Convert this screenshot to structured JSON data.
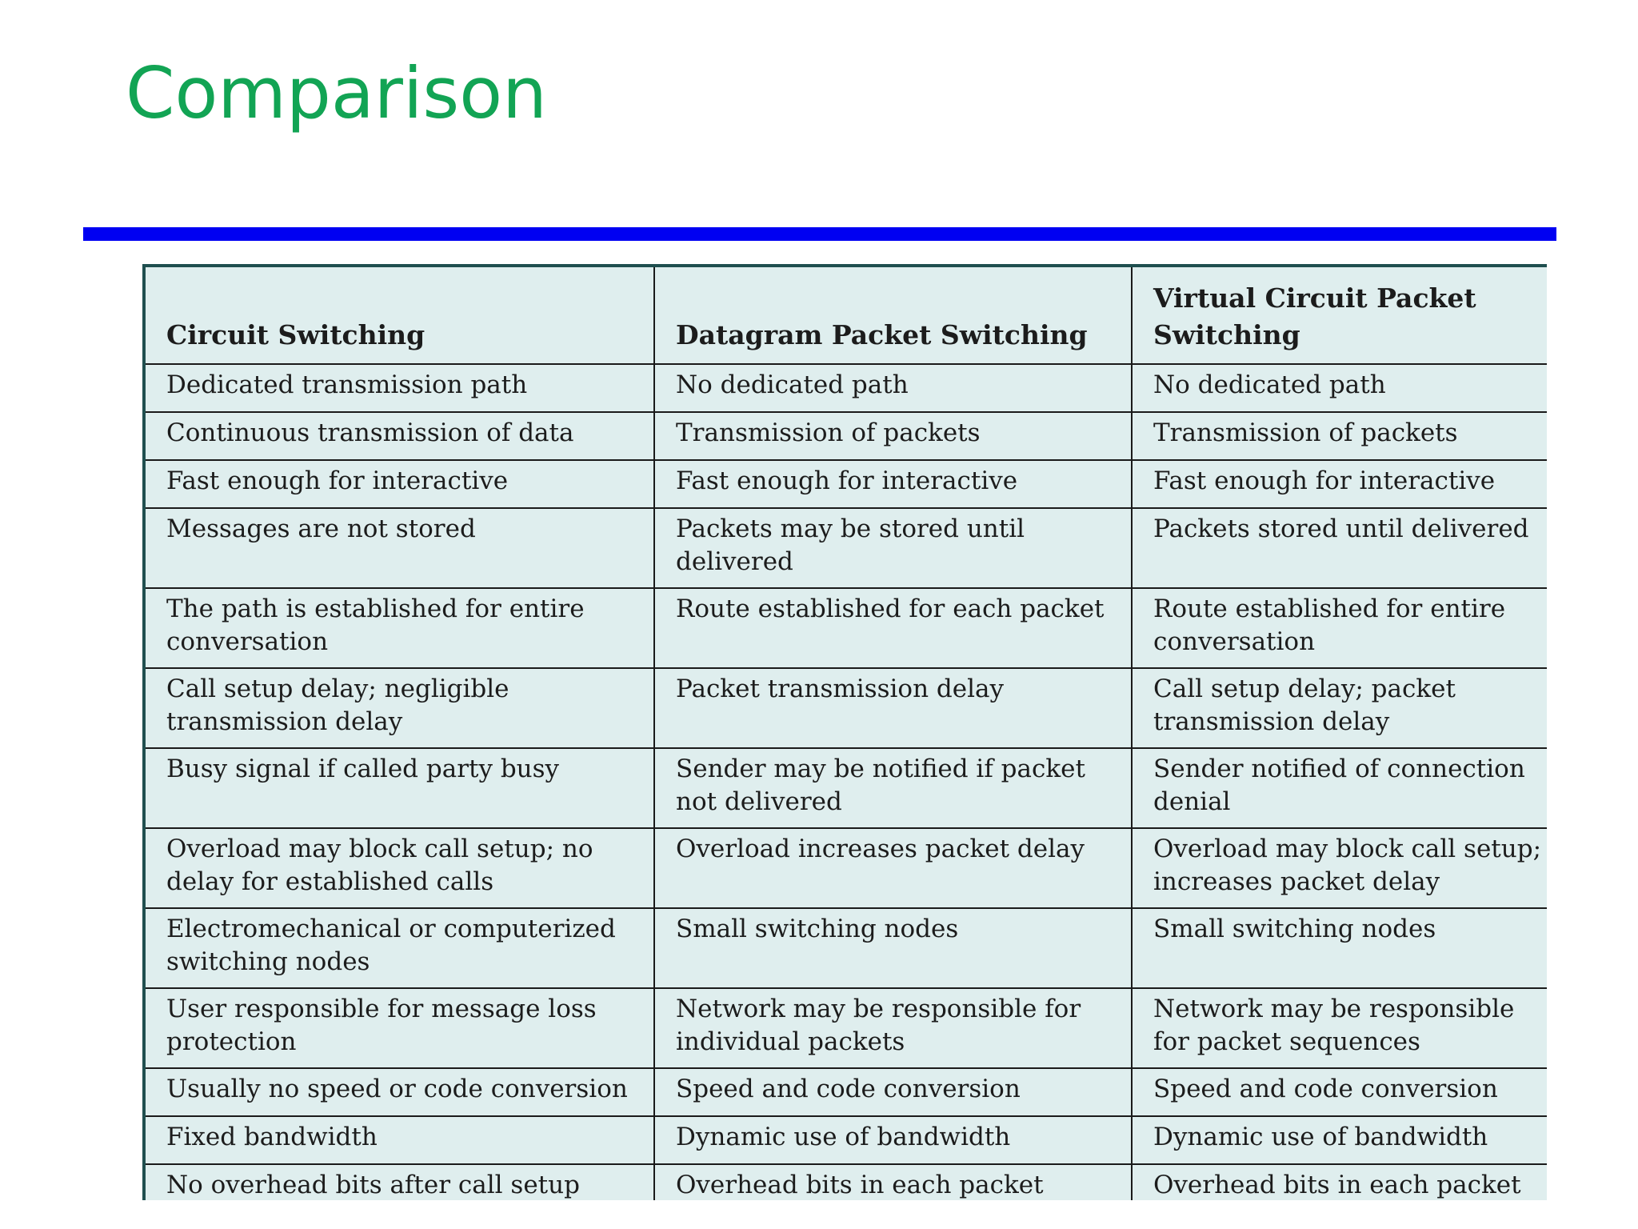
{
  "title": "Comparison",
  "table": {
    "headers": [
      "Circuit Switching",
      "Datagram Packet Switching",
      "Virtual Circuit Packet Switching"
    ],
    "rows": [
      [
        "Dedicated transmission path",
        "No dedicated path",
        "No dedicated path"
      ],
      [
        "Continuous transmission of data",
        "Transmission of packets",
        "Transmission of packets"
      ],
      [
        "Fast enough for interactive",
        "Fast enough for interactive",
        "Fast enough for interactive"
      ],
      [
        "Messages are not stored",
        "Packets may be stored until delivered",
        "Packets stored until delivered"
      ],
      [
        "The path is established for entire conversation",
        "Route established for each packet",
        "Route established for entire conversation"
      ],
      [
        "Call setup delay; negligible transmission delay",
        "Packet transmission delay",
        "Call setup delay; packet transmission delay"
      ],
      [
        "Busy signal if called party busy",
        "Sender may be notified if packet not delivered",
        "Sender notified of connection denial"
      ],
      [
        "Overload may block call setup; no delay for established calls",
        "Overload increases packet delay",
        "Overload may block call setup; increases packet delay"
      ],
      [
        "Electromechanical or computerized switching nodes",
        "Small switching nodes",
        "Small switching nodes"
      ],
      [
        "User responsible for message loss protection",
        "Network may be responsible for individual packets",
        "Network may be responsible for packet sequences"
      ],
      [
        "Usually no speed or code conversion",
        "Speed and code conversion",
        "Speed and code conversion"
      ],
      [
        "Fixed bandwidth",
        "Dynamic use of bandwidth",
        "Dynamic use of bandwidth"
      ],
      [
        "No overhead bits after call setup",
        "Overhead bits in each packet",
        "Overhead bits in each packet"
      ]
    ]
  }
}
